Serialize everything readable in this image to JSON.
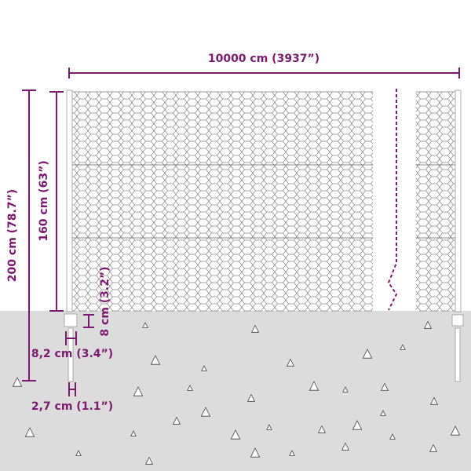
{
  "colors": {
    "accent": "#7b1a6e",
    "ground": "#dcdcdc",
    "mesh": "#777777"
  },
  "dimensions": {
    "length": "10000 cm (3937”)",
    "total_height": "200 cm (78.7”)",
    "mesh_height": "160 cm (63”)",
    "anchor_height": "8 cm (3.2”)",
    "post_width": "8,2 cm (3.4”)",
    "post_diameter": "2,7 cm (1.1”)"
  }
}
